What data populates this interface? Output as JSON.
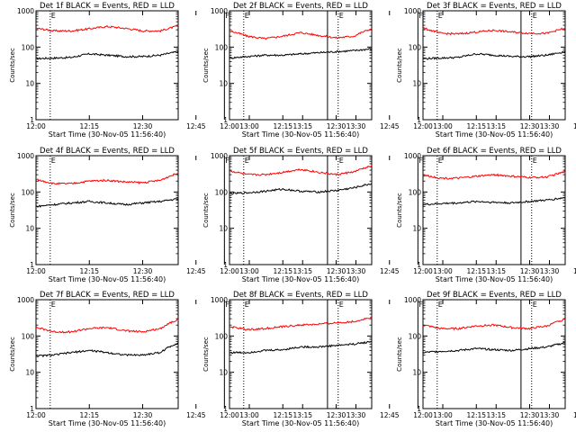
{
  "chart_data": {
    "type": "line",
    "x_ticks": [
      "12:00",
      "12:15",
      "12:30",
      "12:45",
      "13:00",
      "13:15",
      "13:30"
    ],
    "x_range_minutes_after_1200": [
      0,
      40
    ],
    "y_scale": "log",
    "ylim": [
      1,
      1000
    ],
    "y_ticks": [
      "1",
      "10",
      "100",
      "1000"
    ],
    "ylabel": "Counts/sec",
    "xlabel": "Start Time (30-Nov-05 11:56:40)",
    "series_colors": {
      "events": "#000000",
      "lld": "#ff0000"
    },
    "markers": [
      {
        "label": "E",
        "style": "dotted",
        "x": "12:04"
      },
      {
        "label": "F",
        "style": "solid",
        "x": "12:53"
      },
      {
        "label": "",
        "style": "solid",
        "x": "13:22"
      },
      {
        "label": "E",
        "style": "dotted",
        "x": "13:25"
      }
    ],
    "panels": [
      {
        "title": "Det 1f BLACK = Events, RED = LLD",
        "series": [
          {
            "name": "Events",
            "color": "#000000",
            "x": [
              0,
              5,
              10,
              15,
              20,
              25,
              30,
              35,
              40
            ],
            "values": [
              48,
              50,
              52,
              65,
              60,
              55,
              55,
              60,
              75
            ]
          },
          {
            "name": "LLD",
            "color": "#ff0000",
            "x": [
              0,
              5,
              10,
              15,
              20,
              25,
              30,
              35,
              40
            ],
            "values": [
              330,
              280,
              280,
              320,
              370,
              330,
              280,
              280,
              380
            ]
          }
        ]
      },
      {
        "title": "Det 2f BLACK = Events, RED = LLD",
        "series": [
          {
            "name": "Events",
            "color": "#000000",
            "x": [
              0,
              5,
              10,
              15,
              20,
              25,
              30,
              35,
              40
            ],
            "values": [
              50,
              55,
              60,
              60,
              65,
              70,
              75,
              80,
              90
            ]
          },
          {
            "name": "LLD",
            "color": "#ff0000",
            "x": [
              0,
              5,
              10,
              15,
              20,
              25,
              30,
              35,
              40
            ],
            "values": [
              280,
              200,
              170,
              200,
              250,
              210,
              180,
              200,
              320
            ]
          }
        ]
      },
      {
        "title": "Det 3f BLACK = Events, RED = LLD",
        "series": [
          {
            "name": "Events",
            "color": "#000000",
            "x": [
              0,
              5,
              10,
              15,
              20,
              25,
              30,
              35,
              40
            ],
            "values": [
              48,
              50,
              52,
              65,
              60,
              55,
              55,
              60,
              75
            ]
          },
          {
            "name": "LLD",
            "color": "#ff0000",
            "x": [
              0,
              5,
              10,
              15,
              20,
              25,
              30,
              35,
              40
            ],
            "values": [
              330,
              240,
              230,
              260,
              290,
              260,
              240,
              240,
              330
            ]
          }
        ]
      },
      {
        "title": "Det 4f BLACK = Events, RED = LLD",
        "series": [
          {
            "name": "Events",
            "color": "#000000",
            "x": [
              0,
              5,
              10,
              15,
              20,
              25,
              30,
              35,
              40
            ],
            "values": [
              40,
              45,
              50,
              55,
              50,
              45,
              50,
              55,
              65
            ]
          },
          {
            "name": "LLD",
            "color": "#ff0000",
            "x": [
              0,
              5,
              10,
              15,
              20,
              25,
              30,
              35,
              40
            ],
            "values": [
              220,
              170,
              170,
              200,
              210,
              190,
              180,
              210,
              330
            ]
          }
        ]
      },
      {
        "title": "Det 5f BLACK = Events, RED = LLD",
        "series": [
          {
            "name": "Events",
            "color": "#000000",
            "x": [
              0,
              5,
              10,
              15,
              20,
              25,
              30,
              35,
              40
            ],
            "values": [
              90,
              95,
              105,
              120,
              105,
              100,
              110,
              130,
              170
            ]
          },
          {
            "name": "LLD",
            "color": "#ff0000",
            "x": [
              0,
              5,
              10,
              15,
              20,
              25,
              30,
              35,
              40
            ],
            "values": [
              380,
              300,
              300,
              350,
              420,
              350,
              300,
              360,
              520
            ]
          }
        ]
      },
      {
        "title": "Det 6f BLACK = Events, RED = LLD",
        "series": [
          {
            "name": "Events",
            "color": "#000000",
            "x": [
              0,
              5,
              10,
              15,
              20,
              25,
              30,
              35,
              40
            ],
            "values": [
              45,
              48,
              50,
              55,
              52,
              50,
              55,
              60,
              70
            ]
          },
          {
            "name": "LLD",
            "color": "#ff0000",
            "x": [
              0,
              5,
              10,
              15,
              20,
              25,
              30,
              35,
              40
            ],
            "values": [
              290,
              240,
              240,
              270,
              300,
              270,
              250,
              260,
              360
            ]
          }
        ]
      },
      {
        "title": "Det 7f BLACK = Events, RED = LLD",
        "series": [
          {
            "name": "Events",
            "color": "#000000",
            "x": [
              0,
              5,
              10,
              15,
              20,
              25,
              30,
              35,
              40
            ],
            "values": [
              28,
              30,
              35,
              40,
              35,
              30,
              30,
              35,
              65
            ]
          },
          {
            "name": "LLD",
            "color": "#ff0000",
            "x": [
              0,
              5,
              10,
              15,
              20,
              25,
              30,
              35,
              40
            ],
            "values": [
              170,
              130,
              130,
              160,
              170,
              140,
              130,
              160,
              290
            ]
          }
        ]
      },
      {
        "title": "Det 8f BLACK = Events, RED = LLD",
        "series": [
          {
            "name": "Events",
            "color": "#000000",
            "x": [
              0,
              5,
              10,
              15,
              20,
              25,
              30,
              35,
              40
            ],
            "values": [
              35,
              35,
              40,
              42,
              50,
              50,
              55,
              60,
              70
            ]
          },
          {
            "name": "LLD",
            "color": "#ff0000",
            "x": [
              0,
              5,
              10,
              15,
              20,
              25,
              30,
              35,
              40
            ],
            "values": [
              180,
              150,
              160,
              180,
              200,
              210,
              230,
              250,
              320
            ]
          }
        ]
      },
      {
        "title": "Det 9f BLACK = Events, RED = LLD",
        "series": [
          {
            "name": "Events",
            "color": "#000000",
            "x": [
              0,
              5,
              10,
              15,
              20,
              25,
              30,
              35,
              40
            ],
            "values": [
              35,
              38,
              40,
              45,
              42,
              40,
              45,
              50,
              65
            ]
          },
          {
            "name": "LLD",
            "color": "#ff0000",
            "x": [
              0,
              5,
              10,
              15,
              20,
              25,
              30,
              35,
              40
            ],
            "values": [
              200,
              160,
              160,
              190,
              200,
              170,
              160,
              190,
              290
            ]
          }
        ]
      }
    ]
  }
}
